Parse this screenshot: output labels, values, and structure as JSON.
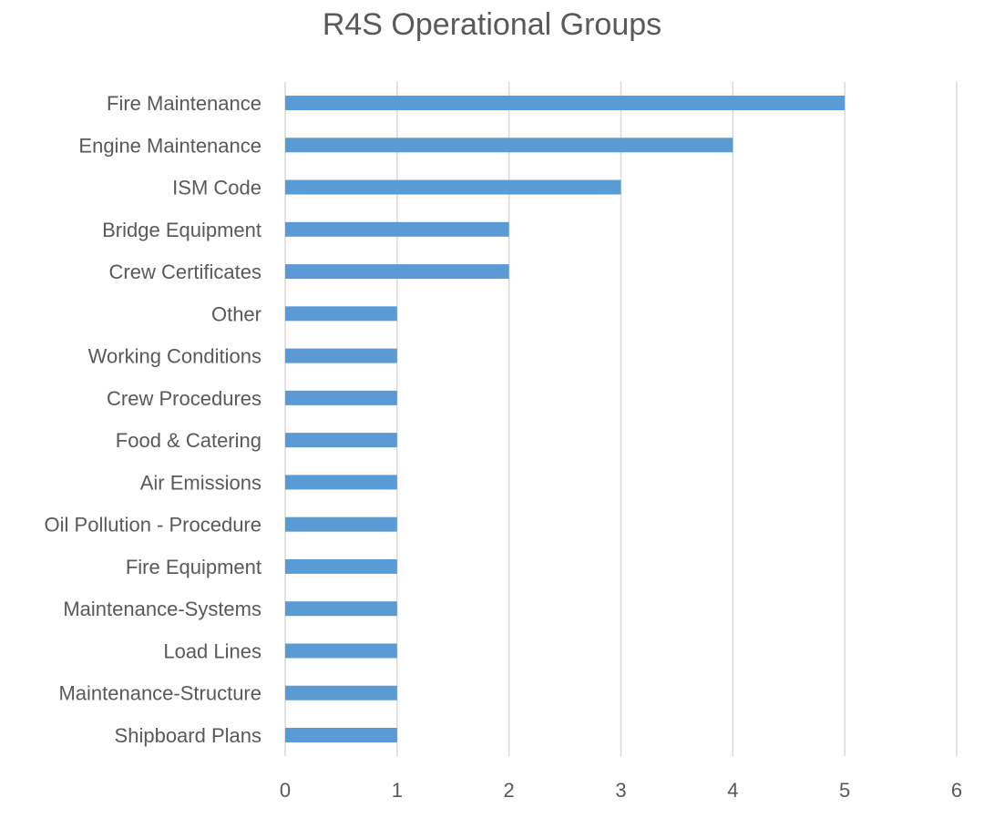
{
  "chart_data": {
    "type": "bar",
    "orientation": "horizontal",
    "title": "R4S Operational Groups",
    "categories": [
      "Fire Maintenance",
      "Engine Maintenance",
      "ISM Code",
      "Bridge Equipment",
      "Crew Certificates",
      "Other",
      "Working Conditions",
      "Crew Procedures",
      "Food & Catering",
      "Air Emissions",
      "Oil Pollution - Procedure",
      "Fire Equipment",
      "Maintenance-Systems",
      "Load Lines",
      "Maintenance-Structure",
      "Shipboard Plans"
    ],
    "values": [
      5,
      4,
      3,
      2,
      2,
      1,
      1,
      1,
      1,
      1,
      1,
      1,
      1,
      1,
      1,
      1
    ],
    "xlim": [
      0,
      6
    ],
    "xticks": [
      "0",
      "1",
      "2",
      "3",
      "4",
      "5",
      "6"
    ],
    "grid": true,
    "bar_color": "#5b9bd5",
    "grid_color": "#d9d9d9",
    "text_color": "#595959"
  }
}
